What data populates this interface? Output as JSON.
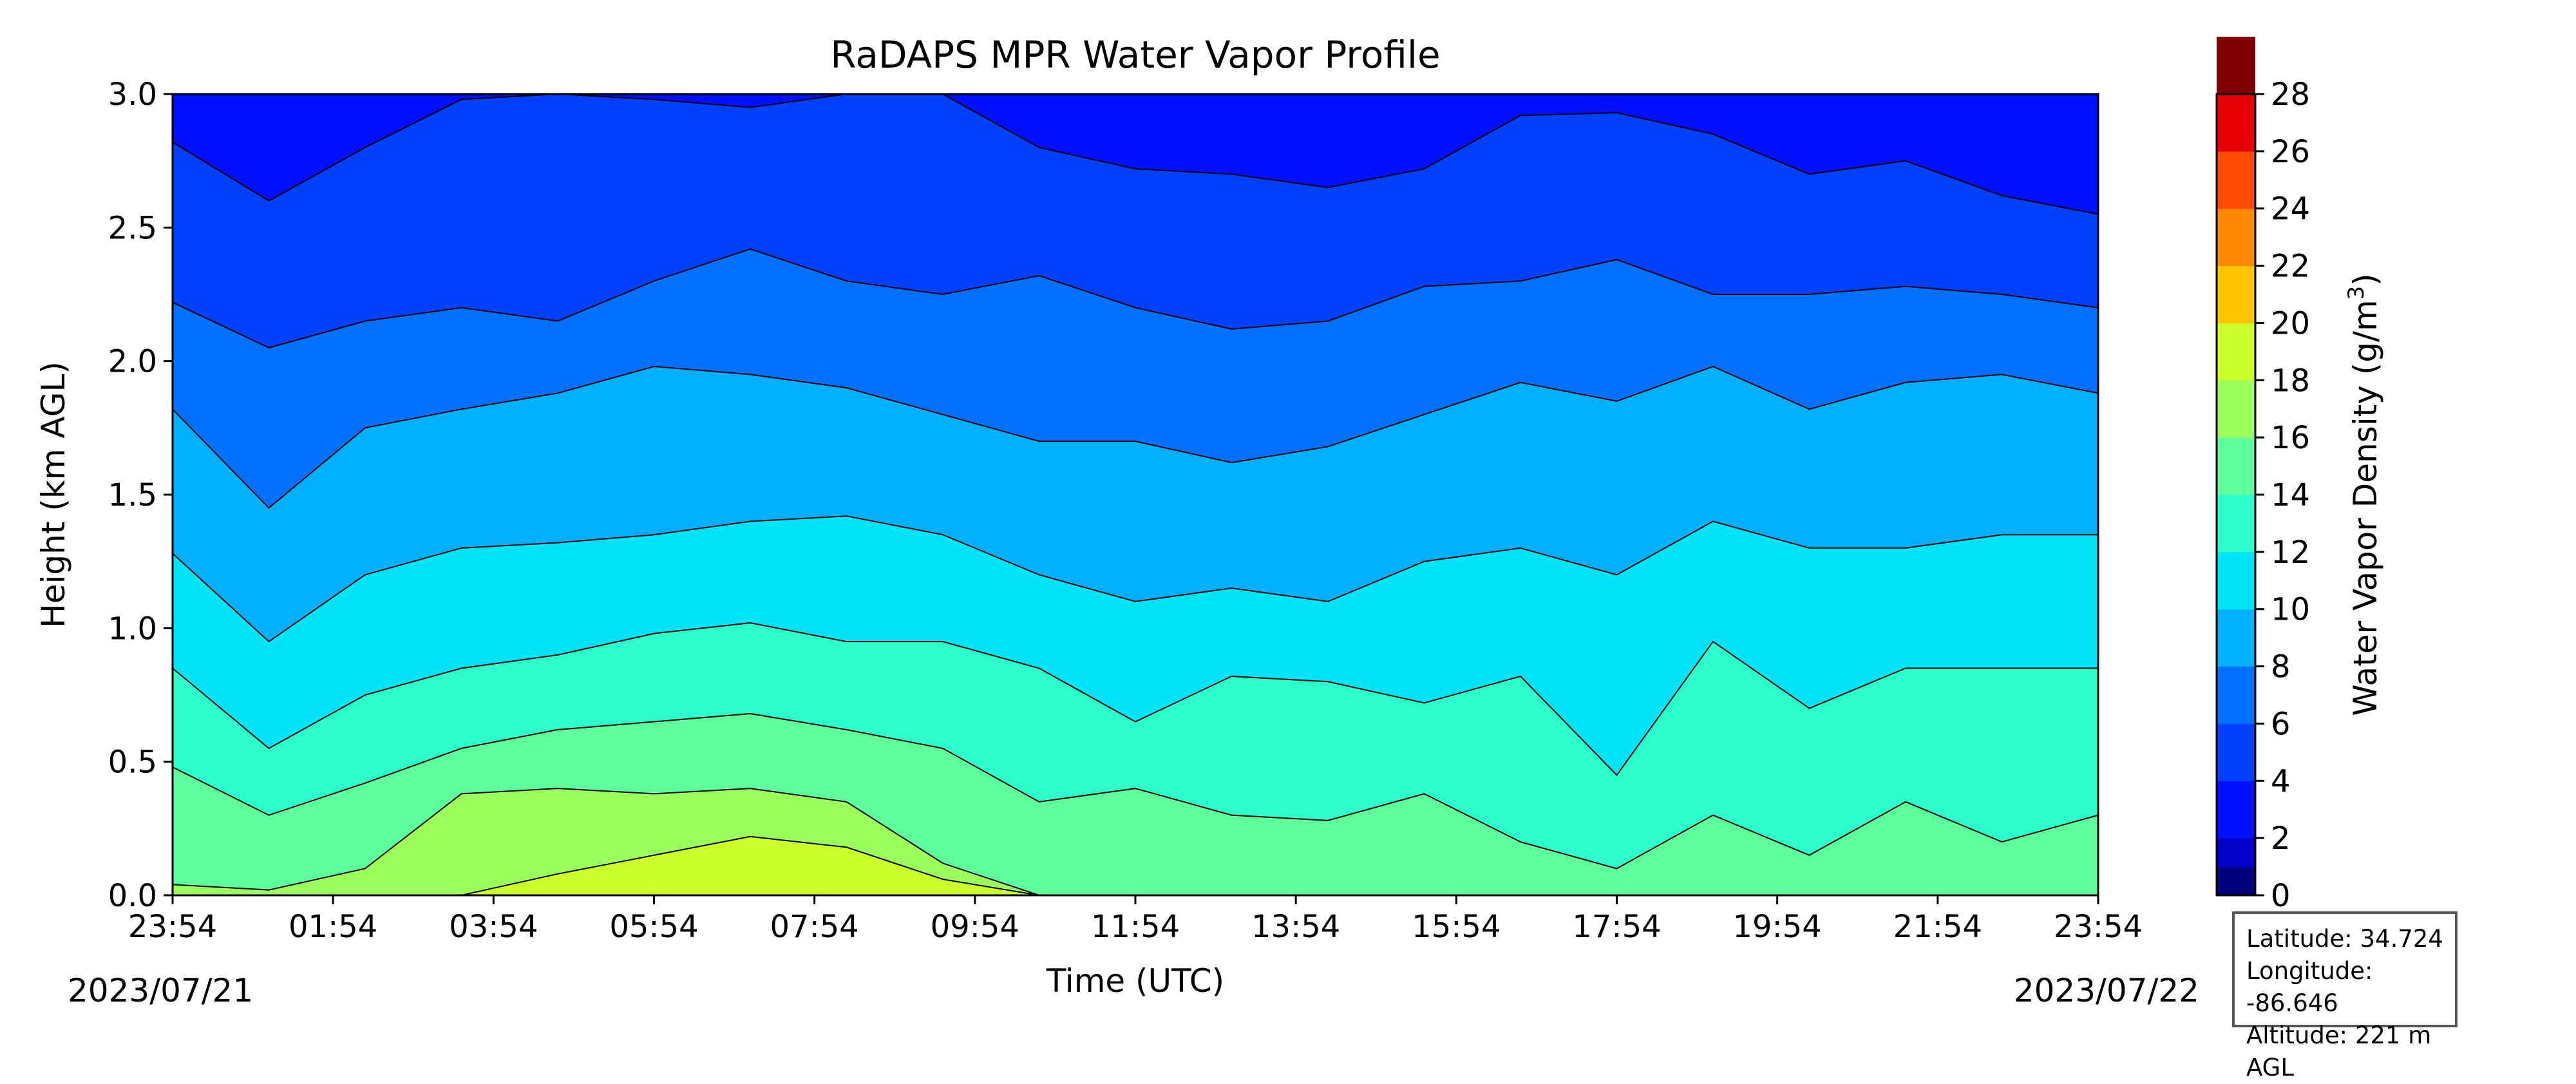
{
  "chart_data": {
    "type": "heatmap",
    "title": "RaDAPS MPR Water Vapor Profile",
    "xlabel": "Time (UTC)",
    "ylabel": "Height (km AGL)",
    "x_ticks": [
      "23:54",
      "01:54",
      "03:54",
      "05:54",
      "07:54",
      "09:54",
      "11:54",
      "13:54",
      "15:54",
      "17:54",
      "19:54",
      "21:54",
      "23:54"
    ],
    "start_date": "2023/07/21",
    "end_date": "2023/07/22",
    "ylim": [
      0,
      3.0
    ],
    "y_ticks": [
      "0.0",
      "0.5",
      "1.0",
      "1.5",
      "2.0",
      "2.5",
      "3.0"
    ],
    "colorbar": {
      "label_main": "Water Vapor Density (g/m",
      "label_sup": "3",
      "label_end": ")",
      "ticks": [
        "0",
        "2",
        "4",
        "6",
        "8",
        "10",
        "12",
        "14",
        "16",
        "18",
        "20",
        "22",
        "24",
        "26",
        "28"
      ],
      "colors": [
        "#00007f",
        "#0000c8",
        "#0010ff",
        "#0040ff",
        "#0070ff",
        "#00b0ff",
        "#00e4f8",
        "#2cffca",
        "#5cff9a",
        "#9aff5c",
        "#caff2c",
        "#ffc400",
        "#ff8800",
        "#ff4a00",
        "#e40000",
        "#7f0000"
      ]
    },
    "contour_levels": [
      {
        "level": 6,
        "color": "#0040ff",
        "heights": [
          2.82,
          2.6,
          2.8,
          2.98,
          3.0,
          2.98,
          2.95,
          3.0,
          3.0,
          2.8,
          2.72,
          2.7,
          2.65,
          2.72,
          2.92,
          2.93,
          2.85,
          2.7,
          2.75,
          2.62,
          2.55
        ]
      },
      {
        "level": 8,
        "color": "#0070ff",
        "heights": [
          2.22,
          2.05,
          2.15,
          2.2,
          2.15,
          2.3,
          2.42,
          2.3,
          2.25,
          2.32,
          2.2,
          2.12,
          2.15,
          2.28,
          2.3,
          2.38,
          2.25,
          2.25,
          2.28,
          2.25,
          2.2
        ]
      },
      {
        "level": 10,
        "color": "#00b0ff",
        "heights": [
          1.82,
          1.45,
          1.75,
          1.82,
          1.88,
          1.98,
          1.95,
          1.9,
          1.8,
          1.7,
          1.7,
          1.62,
          1.68,
          1.8,
          1.92,
          1.85,
          1.98,
          1.82,
          1.92,
          1.95,
          1.88
        ]
      },
      {
        "level": 12,
        "color": "#00e4f8",
        "heights": [
          1.28,
          0.95,
          1.2,
          1.3,
          1.32,
          1.35,
          1.4,
          1.42,
          1.35,
          1.2,
          1.1,
          1.15,
          1.1,
          1.25,
          1.3,
          1.2,
          1.4,
          1.3,
          1.3,
          1.35,
          1.35
        ]
      },
      {
        "level": 14,
        "color": "#2cffca",
        "heights": [
          0.85,
          0.55,
          0.75,
          0.85,
          0.9,
          0.98,
          1.02,
          0.95,
          0.95,
          0.85,
          0.65,
          0.82,
          0.8,
          0.72,
          0.82,
          0.45,
          0.95,
          0.7,
          0.85,
          0.85,
          0.85
        ]
      },
      {
        "level": 16,
        "color": "#5cff9a",
        "heights": [
          0.48,
          0.3,
          0.42,
          0.55,
          0.62,
          0.65,
          0.68,
          0.62,
          0.55,
          0.35,
          0.4,
          0.3,
          0.28,
          0.38,
          0.2,
          0.1,
          0.3,
          0.15,
          0.35,
          0.2,
          0.3
        ]
      },
      {
        "level": 18,
        "color": "#9aff5c",
        "heights": [
          0.04,
          0.02,
          0.1,
          0.38,
          0.4,
          0.38,
          0.4,
          0.35,
          0.12,
          0.0,
          0.0,
          0.0,
          0.0,
          0.0,
          0.0,
          0.0,
          0.0,
          0.0,
          0.0,
          0.0,
          0.0
        ]
      },
      {
        "level": 20,
        "color": "#caff2c",
        "heights": [
          0.0,
          0.0,
          0.0,
          0.0,
          0.08,
          0.15,
          0.22,
          0.18,
          0.06,
          0.0,
          0.0,
          0.0,
          0.0,
          0.0,
          0.0,
          0.0,
          0.0,
          0.0,
          0.0,
          0.0,
          0.0
        ]
      }
    ]
  },
  "info": {
    "latitude": "Latitude: 34.724",
    "longitude": "Longitude: -86.646",
    "altitude": "Altitude: 221 m AGL"
  }
}
